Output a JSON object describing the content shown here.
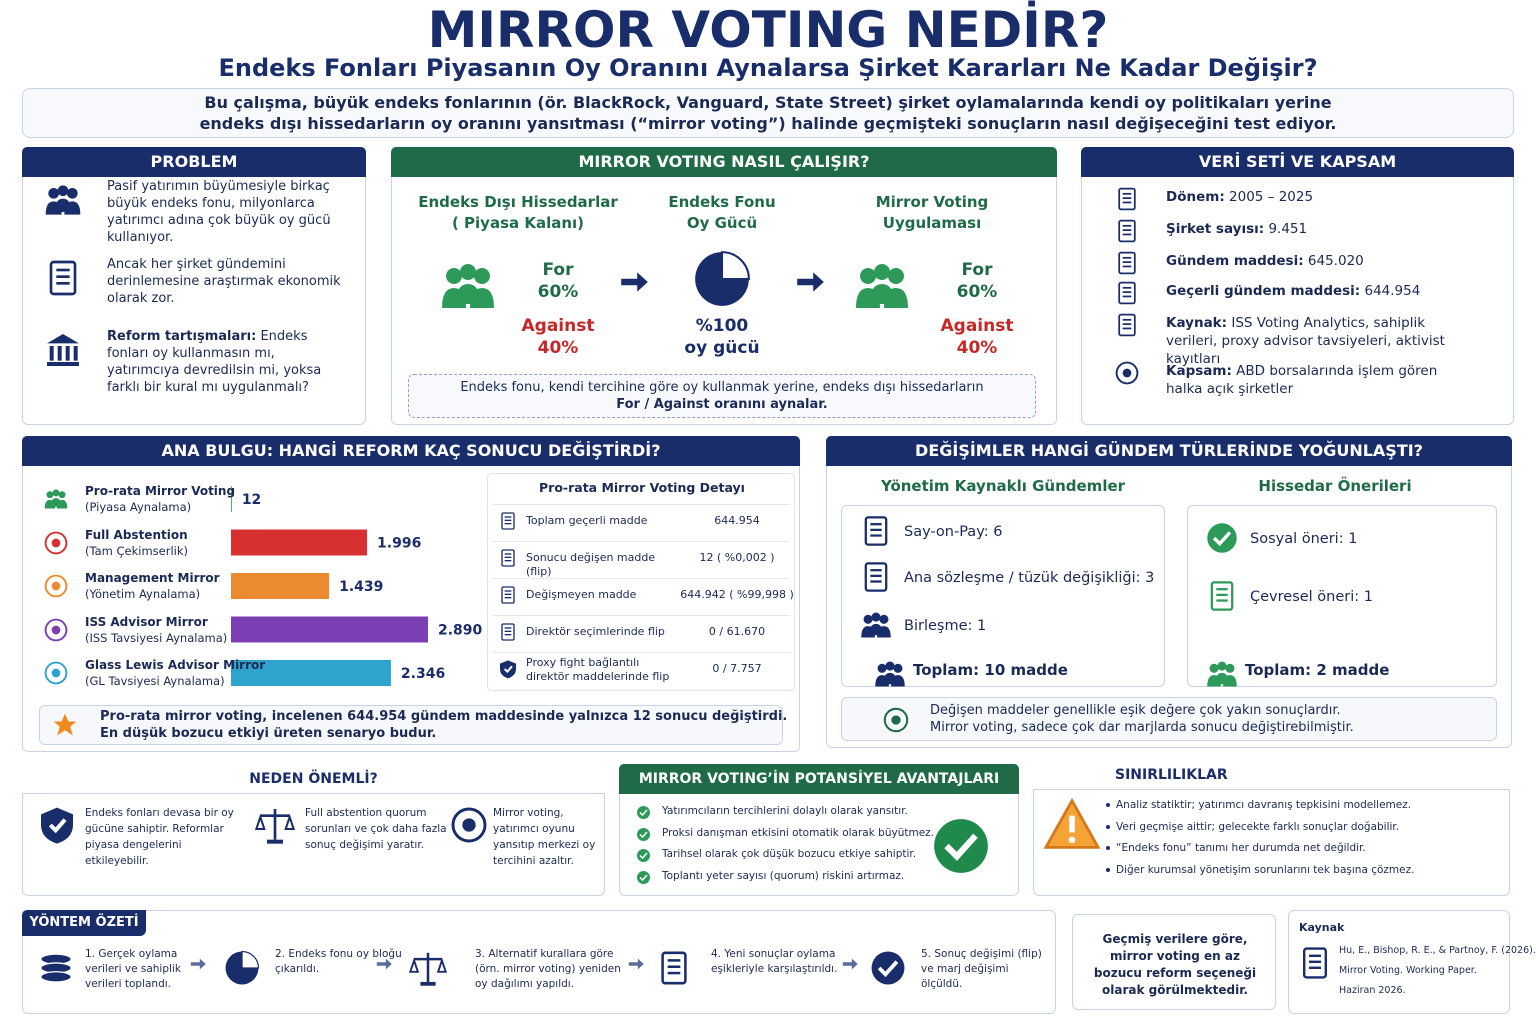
{
  "header": {
    "title": "MIRROR VOTING NEDİR?",
    "subtitle": "Endeks Fonları Piyasanın Oy Oranını Aynalarsa Şirket Kararları Ne Kadar Değişir?",
    "intro": [
      "Bu çalışma, büyük endeks fonlarının (ör. BlackRock, Vanguard, State Street) şirket oylamalarında kendi oy politikaları yerine",
      "endeks dışı hissedarların oy oranını yansıtması (“mirror voting”) halinde geçmişteki sonuçların nasıl değişeceğini test ediyor."
    ]
  },
  "problem": {
    "title": "PROBLEM",
    "items": [
      {
        "text": "Pasif yatırımın büyümesiyle birkaç büyük endeks fonu, milyonlarca yatırımcı adına çok büyük oy gücü kullanıyor."
      },
      {
        "text": "Ancak her şirket gündemini derinlemesine araştırmak ekonomik olarak zor."
      },
      {
        "bold": "Reform tartışmaları:",
        "text": " Endeks fonları oy kullanmasın mı, yatırımcıya devredilsin mi, yoksa farklı bir kural mı uygulanmalı?"
      }
    ]
  },
  "how": {
    "title": "MIRROR VOTING NASIL ÇALIŞIR?",
    "left": {
      "heading": [
        "Endeks Dışı Hissedarlar",
        "( Piyasa Kalanı)"
      ],
      "for_label": "For",
      "for_value": "60%",
      "against_label": "Against",
      "against_value": "40%"
    },
    "center": {
      "heading": [
        "Endeks Fonu",
        "Oy Gücü"
      ],
      "value": "%100",
      "label": "oy gücü"
    },
    "right": {
      "heading": [
        "Mirror Voting",
        "Uygulaması"
      ],
      "for_label": "For",
      "for_value": "60%",
      "against_label": "Against",
      "against_value": "40%"
    },
    "note": [
      "Endeks fonu, kendi tercihine göre oy kullanmak yerine, endeks dışı hissedarların",
      "For / Against oranını aynalar."
    ]
  },
  "dataset": {
    "title": "VERİ SETİ VE KAPSAM",
    "items": [
      {
        "label": "Dönem:",
        "value": " 2005 – 2025"
      },
      {
        "label": "Şirket sayısı:",
        "value": " 9.451"
      },
      {
        "label": "Gündem maddesi:",
        "value": " 645.020"
      },
      {
        "label": "Geçerli gündem maddesi:",
        "value": " 644.954"
      },
      {
        "label": "Kaynak:",
        "value": " ISS Voting Analytics, sahiplik verileri, proxy advisor tavsiyeleri, aktivist kayıtları"
      },
      {
        "label": "Kapsam:",
        "value": " ABD borsalarında işlem gören halka açık şirketler"
      }
    ]
  },
  "findings": {
    "title": "ANA BULGU: HANGİ REFORM KAÇ SONUCU DEĞİŞTİRDİ?",
    "chart": {
      "type": "bar",
      "categories": [
        "Pro-rata Mirror Voting",
        "Full Abstention",
        "Management Mirror",
        "ISS Advisor Mirror",
        "Glass Lewis Advisor Mirror"
      ],
      "sublabels": [
        "(Piyasa Aynalama)",
        "(Tam Çekimserlik)",
        "(Yönetim Aynalama)",
        "(ISS Tavsiyesi Aynalama)",
        "(GL Tavsiyesi Aynalama)"
      ],
      "values": [
        12,
        1996,
        1439,
        2890,
        2346
      ],
      "value_labels": [
        "12",
        "1.996",
        "1.439",
        "2.890",
        "2.346"
      ],
      "colors": [
        "#2e9a5a",
        "#d63031",
        "#ea8b2f",
        "#7b3fb3",
        "#2ea4cc"
      ]
    },
    "detail": {
      "title": "Pro-rata Mirror Voting Detayı",
      "rows": [
        [
          "Toplam geçerli madde",
          "644.954"
        ],
        [
          "Sonucu değişen madde (flip)",
          "12  ( %0,002 )"
        ],
        [
          "Değişmeyen madde",
          "644.942 ( %99,998 )"
        ],
        [
          "Direktör seçimlerinde flip",
          "0 / 61.670"
        ],
        [
          "Proxy fight bağlantılı direktör maddelerinde flip",
          "0 / 7.757"
        ]
      ]
    },
    "note": [
      "Pro-rata mirror voting, incelenen 644.954 gündem maddesinde yalnızca 12 sonucu değiştirdi.",
      "En düşük bozucu etkiyi üreten senaryo budur."
    ]
  },
  "agenda": {
    "title": "DEĞİŞİMLER HANGİ GÜNDEM TÜRLERİNDE YOĞUNLAŞTI?",
    "management": {
      "title": "Yönetim Kaynaklı Gündemler",
      "items": [
        "Say-on-Pay: 6",
        "Ana sözleşme / tüzük değişikliği: 3",
        "Birleşme: 1"
      ],
      "total": "Toplam: 10 madde"
    },
    "shareholder": {
      "title": "Hissedar Önerileri",
      "items": [
        "Sosyal öneri: 1",
        "Çevresel öneri: 1"
      ],
      "total": "Toplam: 2 madde"
    },
    "note": [
      "Değişen maddeler genellikle eşik değere çok yakın sonuçlardır.",
      "Mirror voting, sadece çok dar marjlarda sonucu değiştirebilmiştir."
    ]
  },
  "why": {
    "title": "NEDEN ÖNEMLİ?",
    "items": [
      "Endeks fonları devasa bir oy gücüne sahiptir. Reformlar piyasa dengelerini etkileyebilir.",
      "Full abstention quorum sorunları ve çok daha fazla sonuç değişimi yaratır.",
      "Mirror voting, yatırımcı oyunu yansıtıp merkezi oy tercihini azaltır."
    ]
  },
  "advantages": {
    "title": "MIRROR VOTING’İN POTANSİYEL AVANTAJLARI",
    "items": [
      "Yatırımcıların tercihlerini dolaylı olarak yansıtır.",
      "Proksi danışman etkisini otomatik olarak büyütmez.",
      "Tarihsel olarak çok düşük bozucu etkiye sahiptir.",
      "Toplantı yeter sayısı (quorum) riskini artırmaz."
    ]
  },
  "limits": {
    "title": "SINIRLILIKLAR",
    "items": [
      "Analiz statiktir; yatırımcı davranış tepkisini modellemez.",
      "Veri geçmişe aittir; gelecekte farklı sonuçlar doğabilir.",
      "“Endeks fonu” tanımı her durumda net değildir.",
      "Diğer kurumsal yönetişim sorunlarını tek başına çözmez."
    ]
  },
  "method": {
    "title": "YÖNTEM ÖZETİ",
    "steps": [
      "1. Gerçek oylama verileri ve sahiplik verileri toplandı.",
      "2. Endeks fonu oy bloğu çıkarıldı.",
      "3. Alternatif kurallara göre (örn. mirror voting) yeniden oy dağılımı yapıldı.",
      "4. Yeni sonuçlar oylama eşikleriyle karşılaştırıldı.",
      "5. Sonuç değişimi (flip) ve marj değişimi ölçüldü."
    ]
  },
  "quote": {
    "text": "Geçmiş verilere göre, mirror voting en az bozucu reform seçeneği olarak görülmektedir."
  },
  "source": {
    "title": "Kaynak",
    "lines": [
      "Hu, E., Bishop, R. E., & Partnoy, F. (2026).",
      "Mirror Voting. Working Paper.",
      "Haziran 2026."
    ]
  }
}
